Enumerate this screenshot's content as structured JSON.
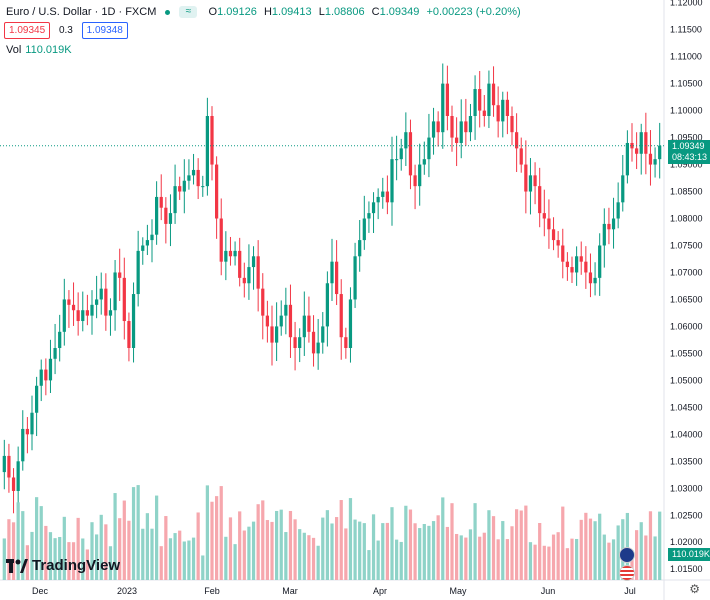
{
  "legend": {
    "title": "Euro / U.S. Dollar · 1D · FXCM",
    "icon": "≈",
    "o_label": "O",
    "o": "1.09126",
    "h_label": "H",
    "h": "1.09413",
    "l_label": "L",
    "l": "1.08806",
    "c_label": "C",
    "c": "1.09349",
    "change": "+0.00223 (+0.20%)",
    "sell_price": "1.09345",
    "spread": "0.3",
    "buy_price": "1.09348"
  },
  "volume": {
    "label": "Vol",
    "value": "110.019K"
  },
  "price_tag": {
    "price": "1.09349",
    "countdown": "08:43:13"
  },
  "logo": {
    "text": "TradingView"
  },
  "colors": {
    "up": "#089981",
    "down": "#f23645",
    "up_vol": "#8fd3c8",
    "down_vol": "#f6a7ad"
  },
  "chart_data": {
    "type": "candlestick",
    "title": "Euro / U.S. Dollar · 1D · FXCM",
    "yaxis_ticks": [
      "1.01500",
      "1.02000",
      "1.02500",
      "1.03000",
      "1.03500",
      "1.04000",
      "1.04500",
      "1.05000",
      "1.05500",
      "1.06000",
      "1.06500",
      "1.07000",
      "1.07500",
      "1.08000",
      "1.08500",
      "1.09000",
      "1.09500",
      "1.10000",
      "1.10500",
      "1.11000",
      "1.11500",
      "1.12000"
    ],
    "xaxis_ticks": [
      "Dec",
      "2023",
      "Feb",
      "Mar",
      "Apr",
      "May",
      "Jun",
      "Jul"
    ],
    "ylim": [
      1.013,
      1.1205
    ],
    "close_series": [
      1.036,
      1.032,
      1.0295,
      1.035,
      1.041,
      1.04,
      1.044,
      1.049,
      1.052,
      1.05,
      1.054,
      1.056,
      1.059,
      1.065,
      1.064,
      1.063,
      1.061,
      1.063,
      1.062,
      1.064,
      1.065,
      1.067,
      1.062,
      1.063,
      1.07,
      1.069,
      1.061,
      1.056,
      1.066,
      1.074,
      1.075,
      1.076,
      1.077,
      1.084,
      1.082,
      1.079,
      1.081,
      1.086,
      1.085,
      1.087,
      1.088,
      1.089,
      1.086,
      1.086,
      1.099,
      1.09,
      1.08,
      1.072,
      1.074,
      1.073,
      1.074,
      1.069,
      1.068,
      1.071,
      1.073,
      1.067,
      1.062,
      1.06,
      1.057,
      1.06,
      1.062,
      1.064,
      1.058,
      1.056,
      1.058,
      1.062,
      1.059,
      1.055,
      1.057,
      1.06,
      1.068,
      1.072,
      1.066,
      1.058,
      1.056,
      1.065,
      1.073,
      1.076,
      1.08,
      1.081,
      1.083,
      1.084,
      1.085,
      1.083,
      1.091,
      1.091,
      1.093,
      1.096,
      1.088,
      1.086,
      1.09,
      1.091,
      1.095,
      1.098,
      1.096,
      1.105,
      1.099,
      1.095,
      1.094,
      1.098,
      1.096,
      1.099,
      1.104,
      1.1,
      1.099,
      1.105,
      1.101,
      1.098,
      1.102,
      1.099,
      1.096,
      1.093,
      1.09,
      1.085,
      1.088,
      1.086,
      1.081,
      1.08,
      1.078,
      1.076,
      1.075,
      1.072,
      1.071,
      1.07,
      1.073,
      1.072,
      1.07,
      1.068,
      1.069,
      1.075,
      1.079,
      1.078,
      1.08,
      1.083,
      1.088,
      1.094,
      1.093,
      1.092,
      1.096,
      1.092,
      1.09,
      1.091,
      1.0935
    ]
  }
}
